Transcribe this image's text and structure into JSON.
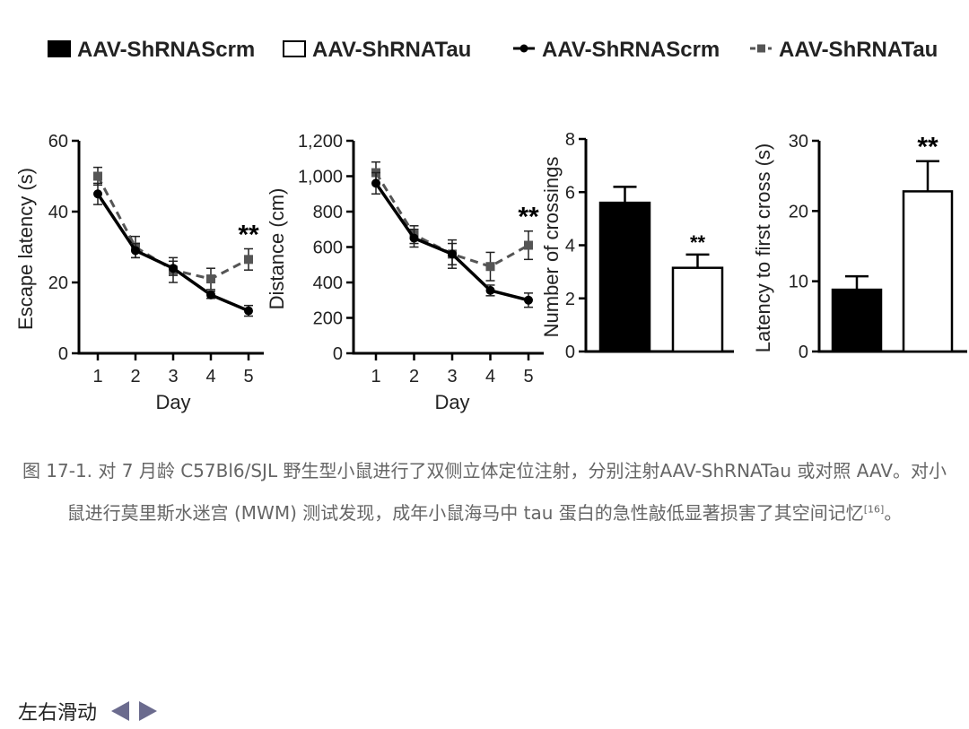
{
  "legend": [
    {
      "label": "AAV-ShRNAScrm",
      "kind": "bar",
      "fill": "#000000"
    },
    {
      "label": "AAV-ShRNATau",
      "kind": "bar",
      "fill": "#ffffff"
    },
    {
      "label": "AAV-ShRNAScrm",
      "kind": "line-solid",
      "color": "#000000"
    },
    {
      "label": "AAV-ShRNATau",
      "kind": "line-dashed",
      "color": "#555555"
    }
  ],
  "chart_data": [
    {
      "type": "line",
      "xlabel": "Day",
      "ylabel": "Escape latency (s)",
      "x": [
        1,
        2,
        3,
        4,
        5
      ],
      "ylim": [
        0,
        60
      ],
      "yticks": [
        "0",
        "20",
        "40",
        "60"
      ],
      "series": [
        {
          "name": "AAV-ShRNAScrm",
          "values": [
            45,
            29,
            24,
            16.5,
            12
          ],
          "errors": [
            3,
            2,
            2,
            1,
            1.5
          ]
        },
        {
          "name": "AAV-ShRNATau",
          "values": [
            50,
            30,
            23.5,
            21,
            26.5
          ],
          "errors": [
            2.5,
            3,
            3.5,
            3,
            3
          ]
        }
      ],
      "annotations": [
        {
          "text": "**",
          "x": 5
        }
      ]
    },
    {
      "type": "line",
      "xlabel": "Day",
      "ylabel": "Distance (cm)",
      "x": [
        1,
        2,
        3,
        4,
        5
      ],
      "ylim": [
        0,
        1200
      ],
      "yticks": [
        "0",
        "200",
        "400",
        "600",
        "800",
        "1,000",
        "1,200"
      ],
      "series": [
        {
          "name": "AAV-ShRNAScrm",
          "values": [
            960,
            650,
            560,
            355,
            300
          ],
          "errors": [
            60,
            50,
            60,
            30,
            40
          ]
        },
        {
          "name": "AAV-ShRNATau",
          "values": [
            1020,
            670,
            560,
            490,
            610
          ],
          "errors": [
            60,
            50,
            80,
            80,
            80
          ]
        }
      ],
      "annotations": [
        {
          "text": "**",
          "x": 5
        }
      ]
    },
    {
      "type": "bar",
      "ylabel": "Number of crossings",
      "ylim": [
        0,
        8
      ],
      "yticks": [
        "0",
        "2",
        "4",
        "6",
        "8"
      ],
      "series": [
        {
          "name": "AAV-ShRNAScrm",
          "values": [
            5.6
          ],
          "errors": [
            0.6
          ]
        },
        {
          "name": "AAV-ShRNATau",
          "values": [
            3.15
          ],
          "errors": [
            0.5
          ]
        }
      ],
      "annotations": [
        {
          "text": "**",
          "bar": 1
        }
      ]
    },
    {
      "type": "bar",
      "ylabel": "Latency to first cross (s)",
      "ylim": [
        0,
        30
      ],
      "yticks": [
        "0",
        "10",
        "20",
        "30"
      ],
      "series": [
        {
          "name": "AAV-ShRNAScrm",
          "values": [
            8.8
          ],
          "errors": [
            1.9
          ]
        },
        {
          "name": "AAV-ShRNATau",
          "values": [
            22.8
          ],
          "errors": [
            4.3
          ]
        }
      ],
      "annotations": [
        {
          "text": "**",
          "bar": 1
        }
      ]
    }
  ],
  "caption": {
    "text": "图 17-1. 对 7 月龄 C57Bl6/SJL 野生型小鼠进行了双侧立体定位注射，分别注射AAV-ShRNATau 或对照 AAV。对小鼠进行莫里斯水迷宫 (MWM) 测试发现，成年小鼠海马中 tau 蛋白的急性敲低显著损害了其空间记忆",
    "ref": "[16]",
    "end": "。"
  },
  "nav": {
    "label": "左右滑动",
    "prev_icon": "triangle-left-icon",
    "next_icon": "triangle-right-icon"
  }
}
